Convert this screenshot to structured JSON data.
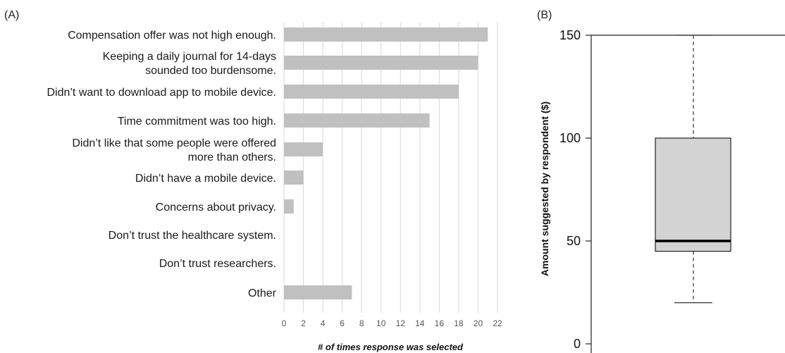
{
  "chart_data": [
    {
      "type": "bar",
      "orientation": "horizontal",
      "panel_label": "(A)",
      "categories": [
        [
          "Compensation offer was not high enough."
        ],
        [
          "Keeping a daily journal for 14-days",
          "sounded too burdensome."
        ],
        [
          "Didn’t want to download app to mobile device."
        ],
        [
          "Time commitment was too high."
        ],
        [
          "Didn’t like that some people were offered",
          "more than others."
        ],
        [
          "Didn’t have a mobile device."
        ],
        [
          "Concerns about privacy."
        ],
        [
          "Don’t trust the healthcare system."
        ],
        [
          "Don’t trust researchers."
        ],
        [
          "Other"
        ]
      ],
      "values": [
        21,
        20,
        18,
        15,
        4,
        2,
        1,
        0,
        0,
        7
      ],
      "xlabel": "# of times response was selected",
      "xlim": [
        0,
        22
      ],
      "xticks": [
        0,
        2,
        4,
        6,
        8,
        10,
        12,
        14,
        16,
        18,
        20,
        22
      ],
      "grid": true,
      "bar_color": "#c0c0c0",
      "grid_color": "#d9d9d9"
    },
    {
      "type": "box",
      "panel_label": "(B)",
      "ylabel": "Amount suggested by respondent ($)",
      "ylim": [
        0,
        150
      ],
      "yticks": [
        0,
        50,
        100,
        150
      ],
      "min": 20,
      "q1": 45,
      "median": 50,
      "q3": 100,
      "max": 150,
      "box_color": "#d3d3d3"
    }
  ]
}
